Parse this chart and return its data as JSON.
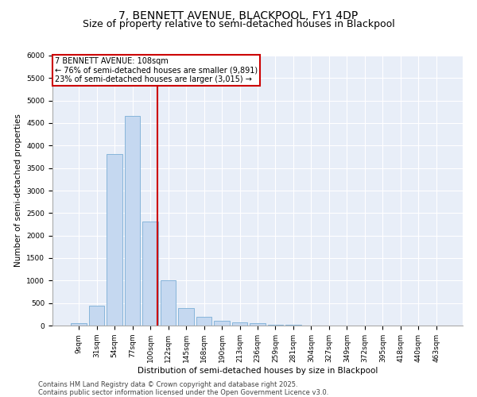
{
  "title1": "7, BENNETT AVENUE, BLACKPOOL, FY1 4DP",
  "title2": "Size of property relative to semi-detached houses in Blackpool",
  "xlabel": "Distribution of semi-detached houses by size in Blackpool",
  "ylabel": "Number of semi-detached properties",
  "categories": [
    "9sqm",
    "31sqm",
    "54sqm",
    "77sqm",
    "100sqm",
    "122sqm",
    "145sqm",
    "168sqm",
    "190sqm",
    "213sqm",
    "236sqm",
    "259sqm",
    "281sqm",
    "304sqm",
    "327sqm",
    "349sqm",
    "372sqm",
    "395sqm",
    "418sqm",
    "440sqm",
    "463sqm"
  ],
  "values": [
    50,
    450,
    3820,
    4650,
    2310,
    1010,
    390,
    200,
    100,
    70,
    50,
    20,
    10,
    0,
    0,
    0,
    0,
    0,
    0,
    0,
    0
  ],
  "bar_color": "#c5d8f0",
  "bar_edge_color": "#7aaed6",
  "vline_color": "#cc0000",
  "annotation_title": "7 BENNETT AVENUE: 108sqm",
  "annotation_line1": "← 76% of semi-detached houses are smaller (9,891)",
  "annotation_line2": "23% of semi-detached houses are larger (3,015) →",
  "annotation_box_color": "#cc0000",
  "ylim": [
    0,
    6000
  ],
  "yticks": [
    0,
    500,
    1000,
    1500,
    2000,
    2500,
    3000,
    3500,
    4000,
    4500,
    5000,
    5500,
    6000
  ],
  "background_color": "#e8eef8",
  "footer_line1": "Contains HM Land Registry data © Crown copyright and database right 2025.",
  "footer_line2": "Contains public sector information licensed under the Open Government Licence v3.0.",
  "title1_fontsize": 10,
  "title2_fontsize": 9,
  "axis_fontsize": 7.5,
  "tick_fontsize": 6.5,
  "footer_fontsize": 6.0,
  "vline_pos": 4.42
}
